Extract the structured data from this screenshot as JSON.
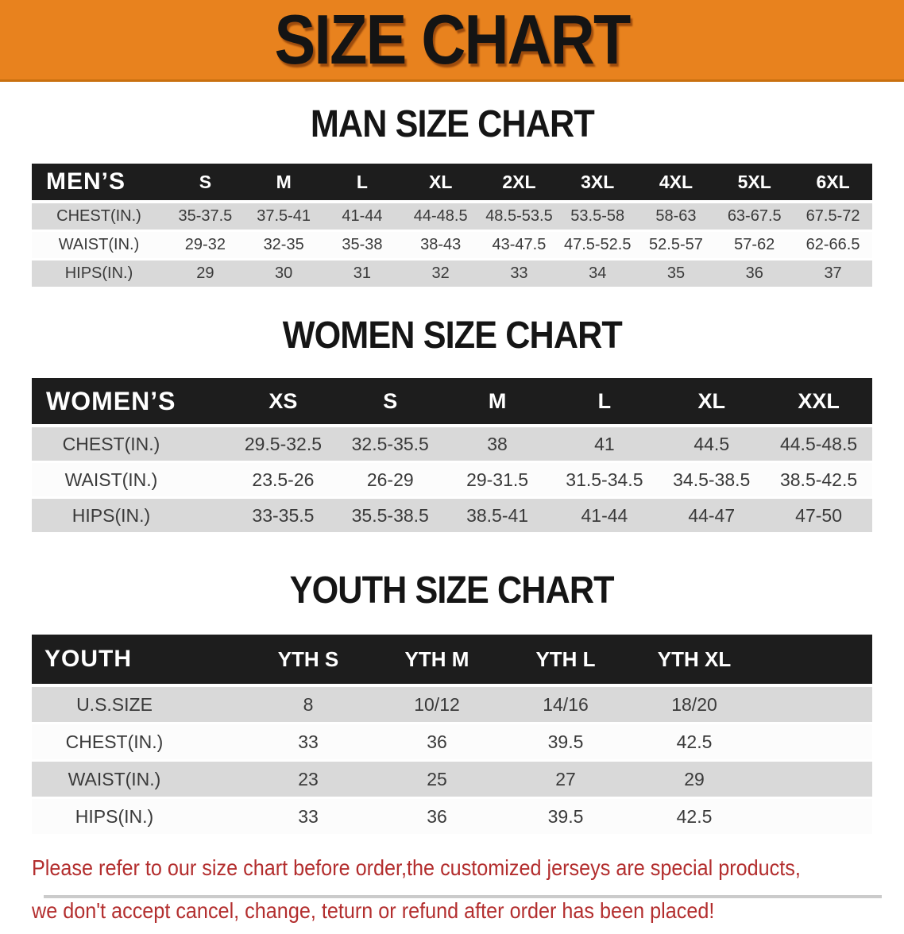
{
  "banner": {
    "title": "SIZE CHART",
    "background_color": "#E8821E",
    "text_color": "#141414"
  },
  "sections": [
    {
      "id": "men",
      "heading": "MAN SIZE CHART",
      "table": {
        "corner_label": "MEN’S",
        "size_columns": [
          "S",
          "M",
          "L",
          "XL",
          "2XL",
          "3XL",
          "4XL",
          "5XL",
          "6XL"
        ],
        "trailing_spacer": false,
        "rows": [
          {
            "label": "CHEST(IN.)",
            "values": [
              "35-37.5",
              "37.5-41",
              "41-44",
              "44-48.5",
              "48.5-53.5",
              "53.5-58",
              "58-63",
              "63-67.5",
              "67.5-72"
            ]
          },
          {
            "label": "WAIST(IN.)",
            "values": [
              "29-32",
              "32-35",
              "35-38",
              "38-43",
              "43-47.5",
              "47.5-52.5",
              "52.5-57",
              "57-62",
              "62-66.5"
            ]
          },
          {
            "label": "HIPS(IN.)",
            "values": [
              "29",
              "30",
              "31",
              "32",
              "33",
              "34",
              "35",
              "36",
              "37"
            ]
          }
        ]
      }
    },
    {
      "id": "women",
      "heading": "WOMEN SIZE CHART",
      "table": {
        "corner_label": "WOMEN’S",
        "size_columns": [
          "XS",
          "S",
          "M",
          "L",
          "XL",
          "XXL"
        ],
        "trailing_spacer": false,
        "rows": [
          {
            "label": "CHEST(IN.)",
            "values": [
              "29.5-32.5",
              "32.5-35.5",
              "38",
              "41",
              "44.5",
              "44.5-48.5"
            ]
          },
          {
            "label": "WAIST(IN.)",
            "values": [
              "23.5-26",
              "26-29",
              "29-31.5",
              "31.5-34.5",
              "34.5-38.5",
              "38.5-42.5"
            ]
          },
          {
            "label": "HIPS(IN.)",
            "values": [
              "33-35.5",
              "35.5-38.5",
              "38.5-41",
              "41-44",
              "44-47",
              "47-50"
            ]
          }
        ]
      }
    },
    {
      "id": "youth",
      "heading": "YOUTH SIZE CHART",
      "table": {
        "corner_label": "YOUTH",
        "size_columns": [
          "YTH S",
          "YTH M",
          "YTH L",
          "YTH XL"
        ],
        "trailing_spacer": true,
        "rows": [
          {
            "label": "U.S.SIZE",
            "values": [
              "8",
              "10/12",
              "14/16",
              "18/20"
            ]
          },
          {
            "label": "CHEST(IN.)",
            "values": [
              "33",
              "36",
              "39.5",
              "42.5"
            ]
          },
          {
            "label": "WAIST(IN.)",
            "values": [
              "23",
              "25",
              "27",
              "29"
            ]
          },
          {
            "label": "HIPS(IN.)",
            "values": [
              "33",
              "36",
              "39.5",
              "42.5"
            ]
          }
        ]
      }
    }
  ],
  "disclaimer": {
    "color": "#B32E2E",
    "line1": "Please refer to our size chart before order,the customized jerseys are special products,",
    "line2": "we don't accept cancel, change, teturn or refund after order has been placed!"
  },
  "colors": {
    "banner_orange": "#E8821E",
    "banner_border": "#C9700F",
    "table_header_bg": "#1D1D1D",
    "row_stripe_gray": "#D9D9D9",
    "row_stripe_white": "#FCFCFC",
    "data_text": "#3A3A3A",
    "disclaimer_red": "#B32E2E"
  }
}
